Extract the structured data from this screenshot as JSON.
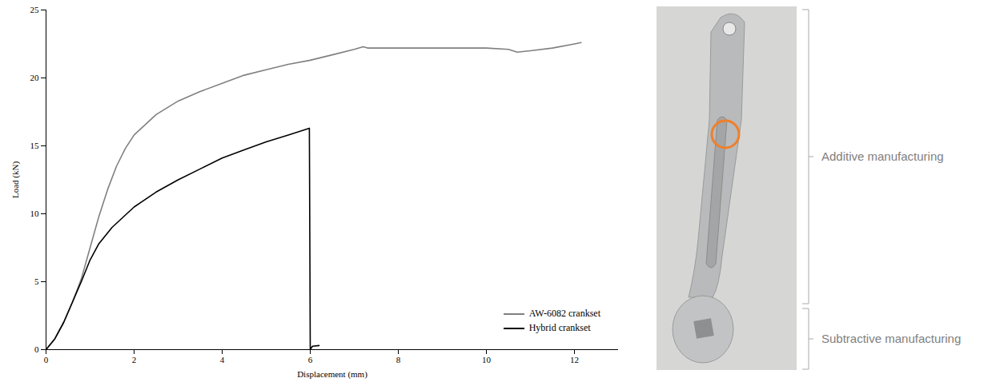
{
  "chart_data": {
    "type": "line",
    "x_label": "Displacement (mm)",
    "y_label": "Load (kN)",
    "xlim": [
      0,
      13
    ],
    "ylim": [
      0,
      25
    ],
    "xticks": [
      0,
      2,
      4,
      6,
      8,
      10,
      12
    ],
    "yticks": [
      0,
      5,
      10,
      15,
      20,
      25
    ],
    "grid": false,
    "legend": "bottom-right",
    "series": [
      {
        "name": "AW-6082 crankset",
        "color": "#808080",
        "x": [
          0,
          0.2,
          0.4,
          0.6,
          0.8,
          1.0,
          1.2,
          1.4,
          1.6,
          1.8,
          2.0,
          2.5,
          3.0,
          3.5,
          4.0,
          4.5,
          5.0,
          5.5,
          6.0,
          6.5,
          7.0,
          7.2,
          7.3,
          8.0,
          9.0,
          10.0,
          10.5,
          10.7,
          11.0,
          11.5,
          12.0,
          12.15
        ],
        "values": [
          0,
          0.8,
          2.0,
          3.5,
          5.2,
          7.5,
          9.8,
          11.8,
          13.5,
          14.8,
          15.8,
          17.3,
          18.3,
          19.0,
          19.6,
          20.2,
          20.6,
          21.0,
          21.3,
          21.7,
          22.1,
          22.3,
          22.2,
          22.2,
          22.2,
          22.2,
          22.1,
          21.9,
          22.0,
          22.2,
          22.5,
          22.6
        ]
      },
      {
        "name": "Hybrid crankset",
        "color": "#000000",
        "x": [
          0,
          0.2,
          0.4,
          0.6,
          0.8,
          1.0,
          1.2,
          1.5,
          2.0,
          2.5,
          3.0,
          3.5,
          4.0,
          4.5,
          5.0,
          5.5,
          5.98,
          5.99,
          6.0,
          6.05,
          6.2
        ],
        "values": [
          0,
          0.8,
          2.0,
          3.5,
          5.0,
          6.6,
          7.8,
          9.0,
          10.5,
          11.6,
          12.5,
          13.3,
          14.1,
          14.7,
          15.3,
          15.8,
          16.3,
          8.4,
          0,
          0.25,
          0.3
        ]
      }
    ],
    "annotations": [
      "Additive manufacturing",
      "Subtractive manufacturing"
    ]
  }
}
